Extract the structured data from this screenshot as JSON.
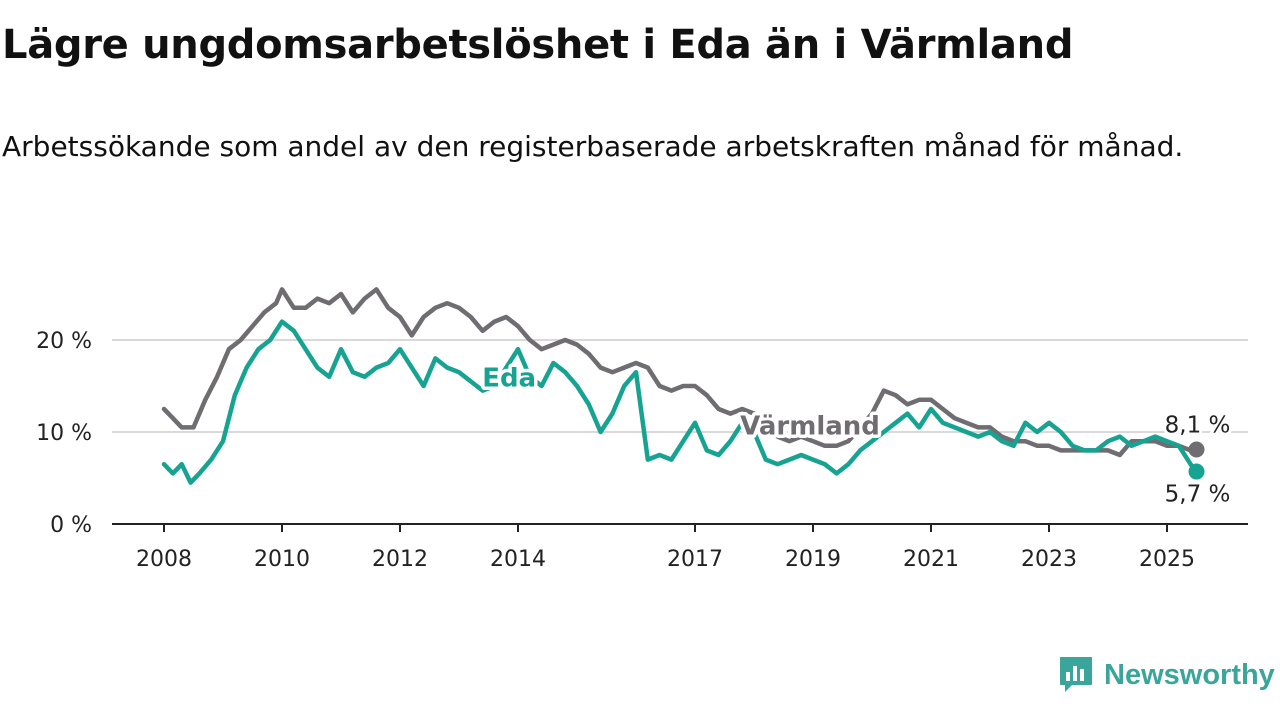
{
  "header": {
    "title": "Lägre ungdomsarbetslöshet i Eda än i Värmland",
    "subtitle": "Arbetssökande som andel av den registerbaserade arbetskraften månad för månad."
  },
  "brand": {
    "name": "Newsworthy",
    "icon": "newsworthy-logo-icon",
    "color": "#3aa59a"
  },
  "chart_data": {
    "type": "line",
    "title": "Lägre ungdomsarbetslöshet i Eda än i Värmland",
    "subtitle": "Arbetssökande som andel av den registerbaserade arbetskraften månad för månad.",
    "xlabel": "",
    "ylabel": "",
    "xlim": [
      2008,
      2026.5
    ],
    "ylim": [
      0,
      25
    ],
    "y_ticks": [
      0,
      10,
      20
    ],
    "y_tick_labels": [
      "0 %",
      "10 %",
      "20 %"
    ],
    "x_ticks": [
      2008,
      2010,
      2012,
      2014,
      2017,
      2019,
      2021,
      2023,
      2025
    ],
    "x_tick_labels": [
      "2008",
      "2010",
      "2012",
      "2014",
      "2017",
      "2019",
      "2021",
      "2023",
      "2025"
    ],
    "grid": "horizontal",
    "legend": "inline labels",
    "series": [
      {
        "name": "Värmland",
        "color": "#6f6c72",
        "last_label": "8,1 %",
        "x": [
          2008.0,
          2008.15,
          2008.3,
          2008.5,
          2008.7,
          2008.9,
          2009.1,
          2009.3,
          2009.5,
          2009.7,
          2009.9,
          2010.0,
          2010.2,
          2010.4,
          2010.6,
          2010.8,
          2011.0,
          2011.2,
          2011.4,
          2011.6,
          2011.8,
          2012.0,
          2012.2,
          2012.4,
          2012.6,
          2012.8,
          2013.0,
          2013.2,
          2013.4,
          2013.6,
          2013.8,
          2014.0,
          2014.2,
          2014.4,
          2014.6,
          2014.8,
          2015.0,
          2015.2,
          2015.4,
          2015.6,
          2015.8,
          2016.0,
          2016.2,
          2016.4,
          2016.6,
          2016.8,
          2017.0,
          2017.2,
          2017.4,
          2017.6,
          2017.8,
          2018.0,
          2018.2,
          2018.4,
          2018.6,
          2018.8,
          2019.0,
          2019.2,
          2019.4,
          2019.6,
          2019.8,
          2020.0,
          2020.2,
          2020.4,
          2020.6,
          2020.8,
          2021.0,
          2021.2,
          2021.4,
          2021.6,
          2021.8,
          2022.0,
          2022.2,
          2022.4,
          2022.6,
          2022.8,
          2023.0,
          2023.2,
          2023.4,
          2023.6,
          2023.8,
          2024.0,
          2024.2,
          2024.4,
          2024.6,
          2024.8,
          2025.0,
          2025.2,
          2025.4,
          2025.5
        ],
        "y": [
          12.5,
          11.5,
          10.5,
          10.5,
          13.5,
          16.0,
          19.0,
          20.0,
          21.5,
          23.0,
          24.0,
          25.5,
          23.5,
          23.5,
          24.5,
          24.0,
          25.0,
          23.0,
          24.5,
          25.5,
          23.5,
          22.5,
          20.5,
          22.5,
          23.5,
          24.0,
          23.5,
          22.5,
          21.0,
          22.0,
          22.5,
          21.5,
          20.0,
          19.0,
          19.5,
          20.0,
          19.5,
          18.5,
          17.0,
          16.5,
          17.0,
          17.5,
          17.0,
          15.0,
          14.5,
          15.0,
          15.0,
          14.0,
          12.5,
          12.0,
          12.5,
          12.0,
          10.5,
          9.5,
          9.0,
          9.5,
          9.0,
          8.5,
          8.5,
          9.0,
          10.5,
          12.0,
          14.5,
          14.0,
          13.0,
          13.5,
          13.5,
          12.5,
          11.5,
          11.0,
          10.5,
          10.5,
          9.5,
          9.0,
          9.0,
          8.5,
          8.5,
          8.0,
          8.0,
          8.0,
          8.0,
          8.0,
          7.5,
          9.0,
          9.0,
          9.0,
          8.5,
          8.5,
          8.0,
          8.1
        ]
      },
      {
        "name": "Eda",
        "color": "#16a392",
        "last_label": "5,7 %",
        "x": [
          2008.0,
          2008.15,
          2008.3,
          2008.45,
          2008.6,
          2008.8,
          2009.0,
          2009.2,
          2009.4,
          2009.6,
          2009.8,
          2010.0,
          2010.2,
          2010.4,
          2010.6,
          2010.8,
          2011.0,
          2011.2,
          2011.4,
          2011.6,
          2011.8,
          2012.0,
          2012.2,
          2012.4,
          2012.6,
          2012.8,
          2013.0,
          2013.2,
          2013.4,
          2013.6,
          2013.8,
          2014.0,
          2014.2,
          2014.4,
          2014.6,
          2014.8,
          2015.0,
          2015.2,
          2015.4,
          2015.6,
          2015.8,
          2016.0,
          2016.2,
          2016.4,
          2016.6,
          2016.8,
          2017.0,
          2017.2,
          2017.4,
          2017.6,
          2017.8,
          2018.0,
          2018.2,
          2018.4,
          2018.6,
          2018.8,
          2019.0,
          2019.2,
          2019.4,
          2019.6,
          2019.8,
          2020.0,
          2020.2,
          2020.4,
          2020.6,
          2020.8,
          2021.0,
          2021.2,
          2021.4,
          2021.6,
          2021.8,
          2022.0,
          2022.2,
          2022.4,
          2022.6,
          2022.8,
          2023.0,
          2023.2,
          2023.4,
          2023.6,
          2023.8,
          2024.0,
          2024.2,
          2024.4,
          2024.6,
          2024.8,
          2025.0,
          2025.2,
          2025.4,
          2025.5
        ],
        "y": [
          6.5,
          5.5,
          6.5,
          4.5,
          5.5,
          7.0,
          9.0,
          14.0,
          17.0,
          19.0,
          20.0,
          22.0,
          21.0,
          19.0,
          17.0,
          16.0,
          19.0,
          16.5,
          16.0,
          17.0,
          17.5,
          19.0,
          17.0,
          15.0,
          18.0,
          17.0,
          16.5,
          15.5,
          14.5,
          15.0,
          17.0,
          19.0,
          16.0,
          15.0,
          17.5,
          16.5,
          15.0,
          13.0,
          10.0,
          12.0,
          15.0,
          16.5,
          7.0,
          7.5,
          7.0,
          9.0,
          11.0,
          8.0,
          7.5,
          9.0,
          11.0,
          10.0,
          7.0,
          6.5,
          7.0,
          7.5,
          7.0,
          6.5,
          5.5,
          6.5,
          8.0,
          9.0,
          10.0,
          11.0,
          12.0,
          10.5,
          12.5,
          11.0,
          10.5,
          10.0,
          9.5,
          10.0,
          9.0,
          8.5,
          11.0,
          10.0,
          11.0,
          10.0,
          8.5,
          8.0,
          8.0,
          9.0,
          9.5,
          8.5,
          9.0,
          9.5,
          9.0,
          8.5,
          6.5,
          5.7
        ]
      }
    ],
    "inline_labels": [
      {
        "text": "Eda",
        "series": "Eda",
        "x": 2013.85,
        "y": 15.9
      },
      {
        "text": "Värmland",
        "series": "Värmland",
        "x": 2018.95,
        "y": 10.7
      }
    ]
  }
}
